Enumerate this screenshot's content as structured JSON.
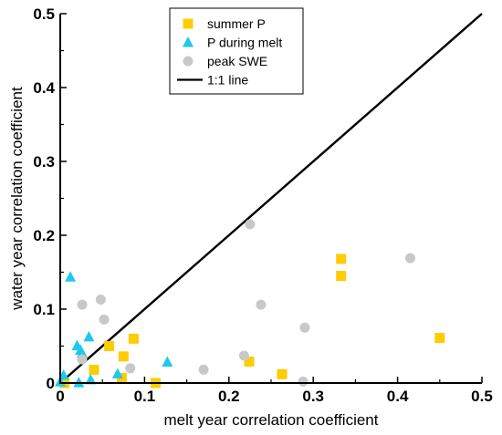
{
  "chart_data": {
    "type": "scatter",
    "xlabel": "melt year correlation coefficient",
    "ylabel": "water year correlation coefficient",
    "xlim": [
      0,
      0.5
    ],
    "ylim": [
      0,
      0.5
    ],
    "xticks": [
      "0",
      "0.1",
      "0.2",
      "0.3",
      "0.4",
      "0.5"
    ],
    "yticks": [
      "0",
      "0.1",
      "0.2",
      "0.3",
      "0.4",
      "0.5"
    ],
    "legend_position": "top-center",
    "series": [
      {
        "name": "summer P",
        "marker": "square",
        "color": "#FFCC00",
        "points": [
          [
            0.005,
            0.0
          ],
          [
            0.04,
            0.018
          ],
          [
            0.058,
            0.05
          ],
          [
            0.075,
            0.036
          ],
          [
            0.073,
            0.007
          ],
          [
            0.087,
            0.06
          ],
          [
            0.113,
            0.0
          ],
          [
            0.224,
            0.029
          ],
          [
            0.263,
            0.012
          ],
          [
            0.333,
            0.168
          ],
          [
            0.333,
            0.145
          ],
          [
            0.45,
            0.061
          ]
        ]
      },
      {
        "name": "P during melt",
        "marker": "triangle",
        "color": "#1EC8EE",
        "points": [
          [
            0.0,
            0.001
          ],
          [
            0.004,
            0.01
          ],
          [
            0.012,
            0.143
          ],
          [
            0.02,
            0.05
          ],
          [
            0.024,
            0.044
          ],
          [
            0.026,
            0.04
          ],
          [
            0.034,
            0.062
          ],
          [
            0.022,
            0.0
          ],
          [
            0.036,
            0.004
          ],
          [
            0.068,
            0.012
          ],
          [
            0.127,
            0.028
          ]
        ]
      },
      {
        "name": "peak SWE",
        "marker": "circle",
        "color": "#C8C8C8",
        "points": [
          [
            0.026,
            0.106
          ],
          [
            0.048,
            0.113
          ],
          [
            0.052,
            0.086
          ],
          [
            0.026,
            0.032
          ],
          [
            0.083,
            0.02
          ],
          [
            0.17,
            0.018
          ],
          [
            0.218,
            0.037
          ],
          [
            0.225,
            0.215
          ],
          [
            0.238,
            0.106
          ],
          [
            0.29,
            0.075
          ],
          [
            0.288,
            0.002
          ],
          [
            0.415,
            0.169
          ]
        ]
      }
    ],
    "reference_line": {
      "name": "1:1 line",
      "from": [
        0,
        0
      ],
      "to": [
        0.5,
        0.5
      ],
      "color": "#000000"
    }
  }
}
